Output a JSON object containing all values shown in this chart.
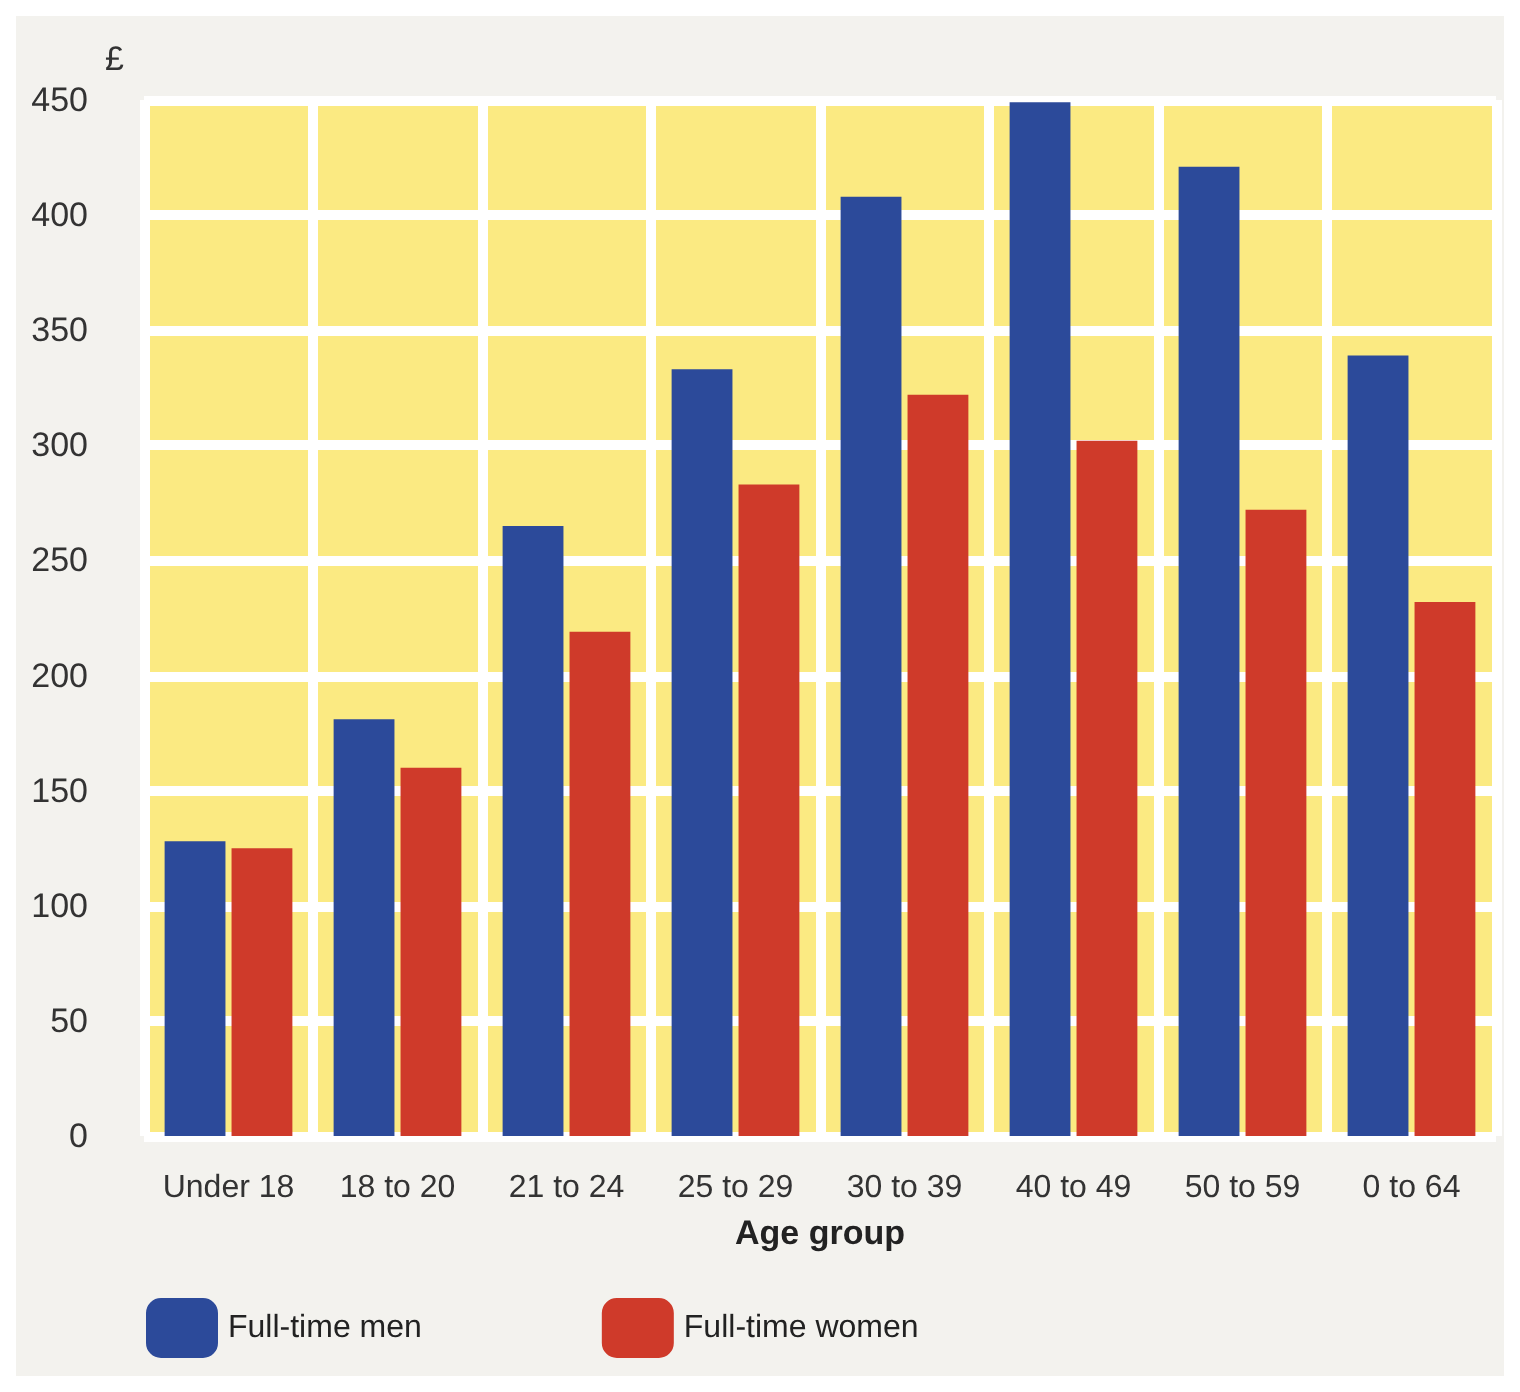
{
  "chart_data": {
    "type": "bar",
    "ylabel": "£",
    "xlabel": "Age group",
    "categories": [
      "Under 18",
      "18 to 20",
      "21 to 24",
      "25 to 29",
      "30 to 39",
      "40 to 49",
      "50 to 59",
      "0 to 64"
    ],
    "series": [
      {
        "name": "Full-time men",
        "color": "#2c4a9a",
        "values": [
          128,
          181,
          265,
          333,
          408,
          449,
          421,
          339
        ]
      },
      {
        "name": "Full-time women",
        "color": "#cf3a2a",
        "values": [
          125,
          160,
          219,
          283,
          322,
          302,
          272,
          232
        ]
      }
    ],
    "ylim": [
      0,
      450
    ],
    "yticks": [
      0,
      50,
      100,
      150,
      200,
      250,
      300,
      350,
      400,
      450
    ],
    "grid": true,
    "legend": "bottom left"
  }
}
